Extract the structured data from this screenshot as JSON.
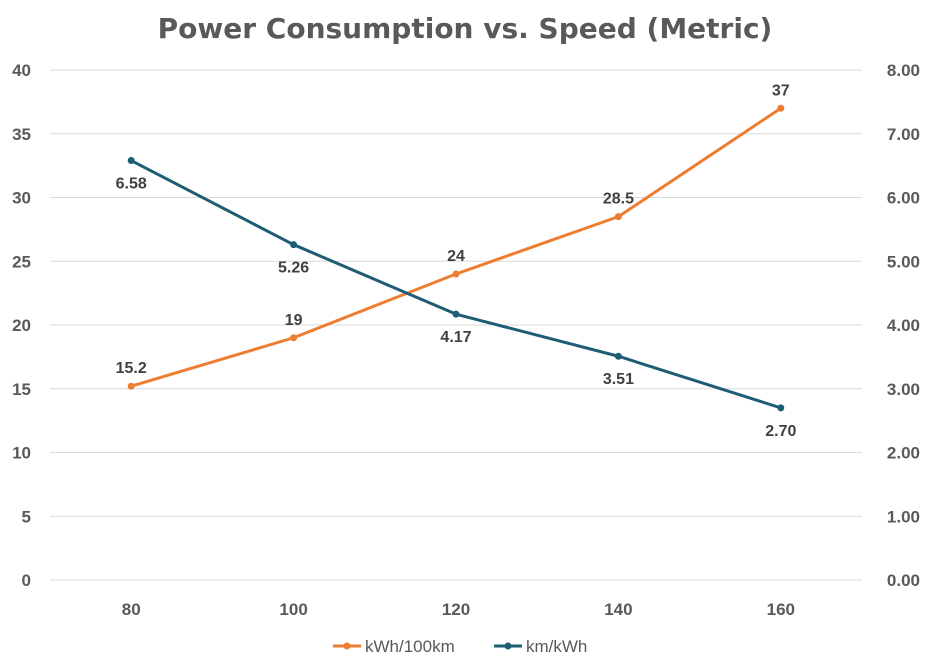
{
  "chart_data": {
    "type": "line",
    "title": "Power Consumption vs. Speed (Metric)",
    "xlabel": "",
    "ylabel": "",
    "categories": [
      80,
      100,
      120,
      140,
      160
    ],
    "category_labels": [
      "80",
      "100",
      "120",
      "140",
      "160"
    ],
    "y_left": {
      "range": [
        0,
        40
      ],
      "ticks": [
        0,
        5,
        10,
        15,
        20,
        25,
        30,
        35,
        40
      ],
      "tick_labels": [
        "0",
        "5",
        "10",
        "15",
        "20",
        "25",
        "30",
        "35",
        "40"
      ]
    },
    "y_right": {
      "range": [
        0,
        8
      ],
      "ticks": [
        0,
        1,
        2,
        3,
        4,
        5,
        6,
        7,
        8
      ],
      "tick_labels": [
        "0.00",
        "1.00",
        "2.00",
        "3.00",
        "4.00",
        "5.00",
        "6.00",
        "7.00",
        "8.00"
      ]
    },
    "grid": true,
    "legend_position": "bottom",
    "series": [
      {
        "name": "kWh/100km",
        "axis": "left",
        "color": "#ED7D31",
        "values": [
          15.2,
          19,
          24,
          28.5,
          37
        ],
        "labels": [
          "15.2",
          "19",
          "24",
          "28.5",
          "37"
        ],
        "label_position": "above"
      },
      {
        "name": "km/kWh",
        "axis": "right",
        "color": "#1F5C75",
        "values": [
          6.58,
          5.26,
          4.17,
          3.51,
          2.7
        ],
        "labels": [
          "6.58",
          "5.26",
          "4.17",
          "3.51",
          "2.70"
        ],
        "label_position": "below"
      }
    ]
  }
}
